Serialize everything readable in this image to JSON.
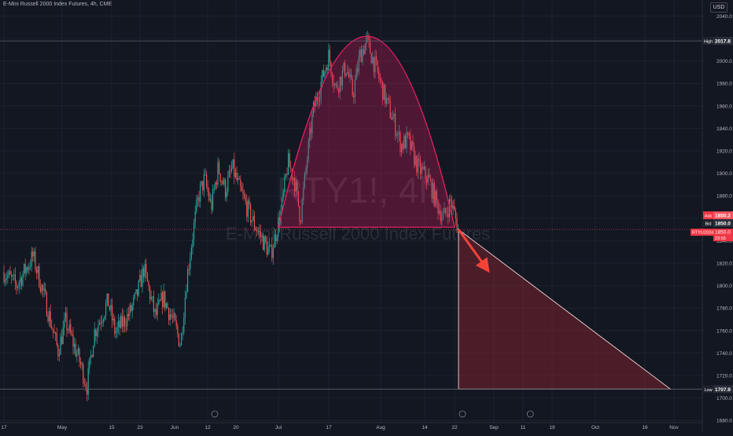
{
  "header": {
    "symbol_line": "E-Mini Russell 2000 Index Futures, 4h, CME"
  },
  "currency_button": "USD",
  "watermark": {
    "line1": "RTY1!, 4h",
    "line2": "E-Mini Russell 2000 Index Futures"
  },
  "colors": {
    "background": "#131722",
    "up": "#26a69a",
    "down": "#ef5350",
    "drawing": "#e91e63",
    "grid": "#1e222d"
  },
  "price_tags": {
    "high": {
      "label": "High",
      "value": "2017.8"
    },
    "low": {
      "label": "Low",
      "value": "1707.9"
    },
    "ask": {
      "label": "Ask",
      "value": "1850.2"
    },
    "bid": {
      "label": "Bid",
      "value": "1850.0"
    },
    "symbol": {
      "label": "RTYU2024",
      "value": "1850.0",
      "countdown": "23:55"
    }
  },
  "chart_data": {
    "type": "candlestick",
    "title": "E-Mini Russell 2000 Index Futures, 4h, CME",
    "ylim": [
      1672,
      2050
    ],
    "y_ticks": [
      "2040.0",
      "2020.0",
      "2000.0",
      "1980.0",
      "1960.0",
      "1940.0",
      "1920.0",
      "1900.0",
      "1880.0",
      "1860.0",
      "1840.0",
      "1820.0",
      "1800.0",
      "1780.0",
      "1760.0",
      "1740.0",
      "1720.0",
      "1700.0",
      "1680.0"
    ],
    "x_ticks": [
      "17",
      "May",
      "15",
      "23",
      "Jun",
      "12",
      "20",
      "Jul",
      "17",
      "Aug",
      "14",
      "22",
      "Sep",
      "11",
      "19",
      "Oct",
      "16",
      "Nov"
    ],
    "close_path": [
      [
        "Apr 17",
        1812
      ],
      [
        "Apr 20",
        1800
      ],
      [
        "Apr 24",
        1826
      ],
      [
        "Apr 27",
        1786
      ],
      [
        "Apr 30",
        1742
      ],
      [
        "May 2",
        1768
      ],
      [
        "May 6",
        1732
      ],
      [
        "May 8",
        1710
      ],
      [
        "May 10",
        1758
      ],
      [
        "May 14",
        1786
      ],
      [
        "May 16",
        1758
      ],
      [
        "May 20",
        1775
      ],
      [
        "May 22",
        1790
      ],
      [
        "May 24",
        1815
      ],
      [
        "May 27",
        1772
      ],
      [
        "May 29",
        1790
      ],
      [
        "Jun 1",
        1765
      ],
      [
        "Jun 3",
        1748
      ],
      [
        "Jun 5",
        1805
      ],
      [
        "Jun 7",
        1845
      ],
      [
        "Jun 9",
        1880
      ],
      [
        "Jun 11",
        1895
      ],
      [
        "Jun 13",
        1870
      ],
      [
        "Jun 15",
        1905
      ],
      [
        "Jun 17",
        1885
      ],
      [
        "Jun 19",
        1905
      ],
      [
        "Jun 21",
        1885
      ],
      [
        "Jun 24",
        1860
      ],
      [
        "Jun 27",
        1840
      ],
      [
        "Jun 29",
        1828
      ],
      [
        "Jul 2",
        1868
      ],
      [
        "Jul 4",
        1910
      ],
      [
        "Jul 6",
        1895
      ],
      [
        "Jul 8",
        1860
      ],
      [
        "Jul 10",
        1910
      ],
      [
        "Jul 12",
        1955
      ],
      [
        "Jul 15",
        1985
      ],
      [
        "Jul 17",
        2005
      ],
      [
        "Jul 19",
        1975
      ],
      [
        "Jul 22",
        1995
      ],
      [
        "Jul 24",
        1970
      ],
      [
        "Jul 26",
        2005
      ],
      [
        "Jul 28",
        2017.8
      ],
      [
        "Jul 31",
        1990
      ],
      [
        "Aug 2",
        1970
      ],
      [
        "Aug 5",
        1945
      ],
      [
        "Aug 7",
        1925
      ],
      [
        "Aug 9",
        1930
      ],
      [
        "Aug 12",
        1905
      ],
      [
        "Aug 15",
        1895
      ],
      [
        "Aug 17",
        1875
      ],
      [
        "Aug 19",
        1860
      ],
      [
        "Aug 21",
        1875
      ],
      [
        "Aug 23",
        1850
      ]
    ],
    "rounding_top": {
      "start": [
        "Jul 1",
        1852
      ],
      "peak": [
        "Jul 28",
        2022
      ],
      "end": [
        "Aug 22",
        1852
      ]
    },
    "projection_triangle": {
      "vertices": [
        [
          "Aug 23",
          1850
        ],
        [
          "Aug 23",
          1707.9
        ],
        [
          "Oct 23",
          1707.9
        ]
      ]
    },
    "arrow": {
      "from": [
        "Aug 23",
        1850
      ],
      "to": [
        "Aug 30",
        1816
      ]
    },
    "high_line": 2017.8,
    "low_line": 1707.9,
    "bid_line": 1850.0
  }
}
